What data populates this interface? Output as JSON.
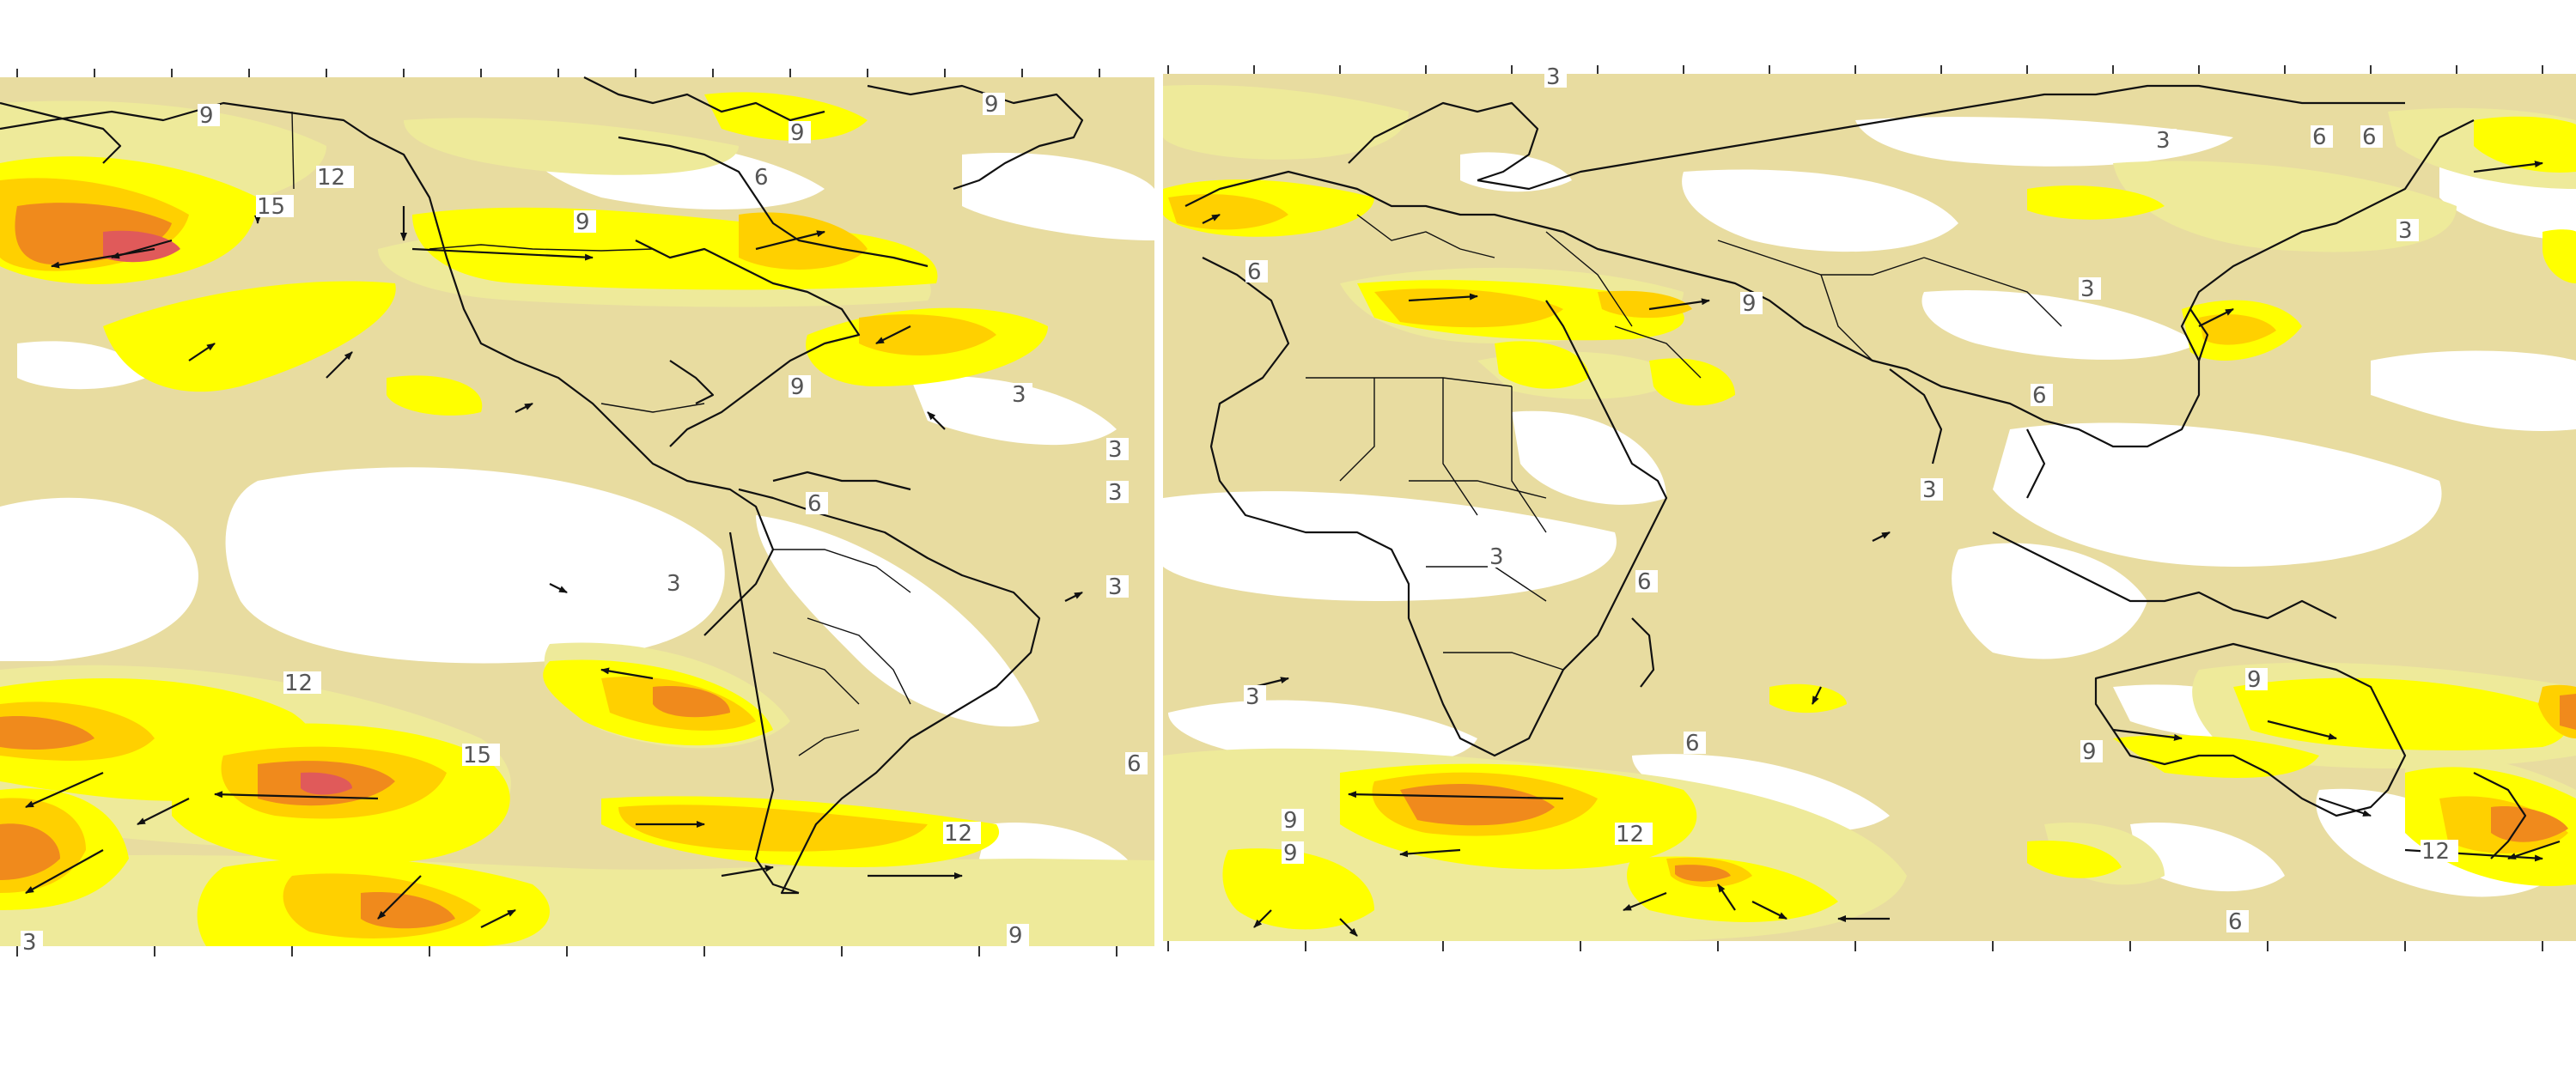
{
  "map": {
    "panels": [
      {
        "name": "western-hemisphere",
        "contour_labels": [
          "9",
          "9",
          "6",
          "12",
          "15",
          "9",
          "9",
          "9",
          "3",
          "3",
          "6",
          "3",
          "3",
          "3",
          "12",
          "15",
          "12",
          "6",
          "9",
          "3"
        ]
      },
      {
        "name": "eastern-hemisphere",
        "contour_labels": [
          "3",
          "6",
          "6",
          "3",
          "6",
          "9",
          "3",
          "6",
          "3",
          "3",
          "6",
          "3",
          "6",
          "9",
          "9",
          "12",
          "9",
          "9",
          "12",
          "6",
          "3"
        ]
      }
    ],
    "colors": {
      "background": "#ffffff",
      "level_3": "#e8dca0",
      "level_6": "#eeea9a",
      "level_9": "#ffff00",
      "level_12": "#ffd000",
      "level_15": "#f08a1c",
      "level_18": "#e05a5a",
      "land_outline": "#111111",
      "vector_arrow": "#111111"
    },
    "layers": [
      "filled-contours",
      "coastlines",
      "country-borders",
      "wind-vectors",
      "contour-labels"
    ]
  }
}
